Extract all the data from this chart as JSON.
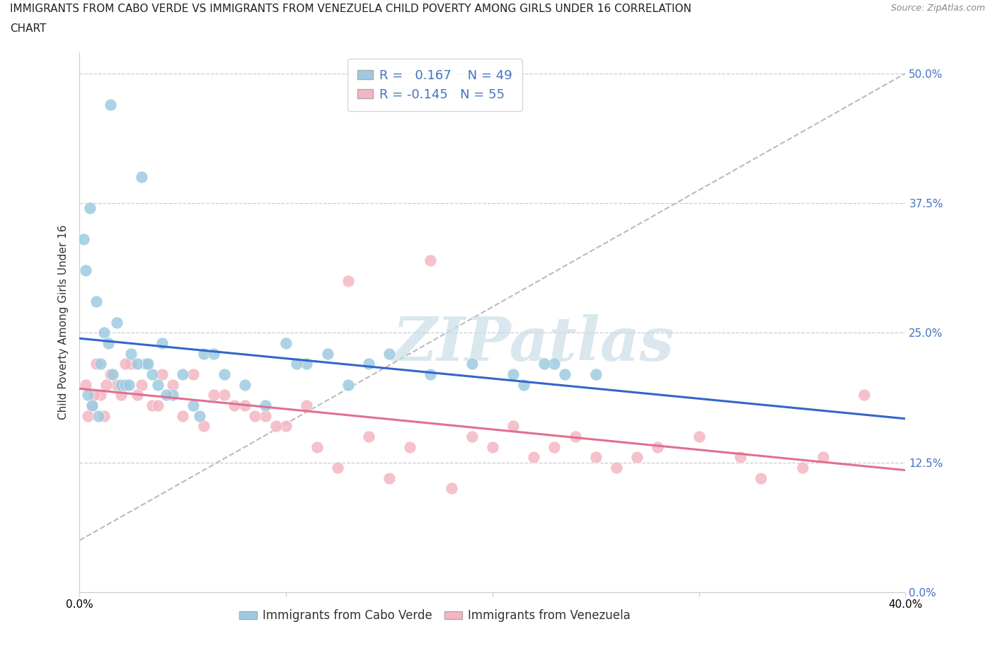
{
  "title_line1": "IMMIGRANTS FROM CABO VERDE VS IMMIGRANTS FROM VENEZUELA CHILD POVERTY AMONG GIRLS UNDER 16 CORRELATION",
  "title_line2": "CHART",
  "source": "Source: ZipAtlas.com",
  "ylabel": "Child Poverty Among Girls Under 16",
  "ytick_vals": [
    0.0,
    12.5,
    25.0,
    37.5,
    50.0
  ],
  "ytick_labels": [
    "0.0%",
    "12.5%",
    "25.0%",
    "37.5%",
    "50.0%"
  ],
  "xtick_vals": [
    0,
    10,
    20,
    30,
    40
  ],
  "xlim": [
    0.0,
    40.0
  ],
  "ylim": [
    0.0,
    52.0
  ],
  "cabo_verde_color": "#9ecae1",
  "venezuela_color": "#f4b6c2",
  "cabo_verde_R": 0.167,
  "cabo_verde_N": 49,
  "venezuela_R": -0.145,
  "venezuela_N": 55,
  "trend_blue": "#3366cc",
  "trend_pink": "#e07090",
  "trend_dashed_color": "#bbbbbb",
  "watermark_color": "#ccdde8",
  "watermark": "ZIPatlas",
  "legend_label_blue": "Immigrants from Cabo Verde",
  "legend_label_pink": "Immigrants from Venezuela",
  "title_fontsize": 11,
  "tick_fontsize": 11,
  "legend_fontsize": 12,
  "right_tick_color": "#4472c4",
  "cabo_verde_x": [
    1.5,
    3.0,
    0.2,
    0.5,
    0.3,
    0.8,
    1.0,
    1.2,
    2.0,
    2.5,
    3.5,
    4.0,
    1.8,
    2.2,
    3.2,
    4.5,
    5.0,
    0.6,
    1.4,
    2.8,
    3.8,
    5.5,
    6.0,
    0.4,
    0.9,
    1.6,
    2.4,
    3.3,
    4.2,
    5.8,
    6.5,
    7.0,
    8.0,
    9.0,
    10.0,
    11.0,
    13.0,
    15.0,
    17.0,
    19.0,
    21.0,
    23.0,
    25.0,
    21.5,
    22.5,
    23.5,
    10.5,
    12.0,
    14.0
  ],
  "cabo_verde_y": [
    47.0,
    40.0,
    34.0,
    37.0,
    31.0,
    28.0,
    22.0,
    25.0,
    20.0,
    23.0,
    21.0,
    24.0,
    26.0,
    20.0,
    22.0,
    19.0,
    21.0,
    18.0,
    24.0,
    22.0,
    20.0,
    18.0,
    23.0,
    19.0,
    17.0,
    21.0,
    20.0,
    22.0,
    19.0,
    17.0,
    23.0,
    21.0,
    20.0,
    18.0,
    24.0,
    22.0,
    20.0,
    23.0,
    21.0,
    22.0,
    21.0,
    22.0,
    21.0,
    20.0,
    22.0,
    21.0,
    22.0,
    23.0,
    22.0
  ],
  "venezuela_x": [
    0.3,
    0.6,
    0.8,
    1.0,
    1.2,
    1.5,
    1.8,
    2.0,
    2.5,
    3.0,
    3.5,
    4.0,
    0.4,
    0.7,
    1.3,
    2.2,
    2.8,
    3.8,
    4.5,
    5.0,
    5.5,
    6.0,
    7.0,
    8.0,
    9.0,
    10.0,
    11.0,
    14.0,
    16.0,
    19.0,
    21.0,
    13.0,
    17.0,
    23.0,
    27.0,
    30.0,
    32.0,
    35.0,
    38.0,
    6.5,
    7.5,
    8.5,
    9.5,
    11.5,
    12.5,
    15.0,
    18.0,
    20.0,
    22.0,
    24.0,
    26.0,
    28.0,
    33.0,
    25.0,
    36.0
  ],
  "venezuela_y": [
    20.0,
    18.0,
    22.0,
    19.0,
    17.0,
    21.0,
    20.0,
    19.0,
    22.0,
    20.0,
    18.0,
    21.0,
    17.0,
    19.0,
    20.0,
    22.0,
    19.0,
    18.0,
    20.0,
    17.0,
    21.0,
    16.0,
    19.0,
    18.0,
    17.0,
    16.0,
    18.0,
    15.0,
    14.0,
    15.0,
    16.0,
    30.0,
    32.0,
    14.0,
    13.0,
    15.0,
    13.0,
    12.0,
    19.0,
    19.0,
    18.0,
    17.0,
    16.0,
    14.0,
    12.0,
    11.0,
    10.0,
    14.0,
    13.0,
    15.0,
    12.0,
    14.0,
    11.0,
    13.0,
    13.0
  ]
}
